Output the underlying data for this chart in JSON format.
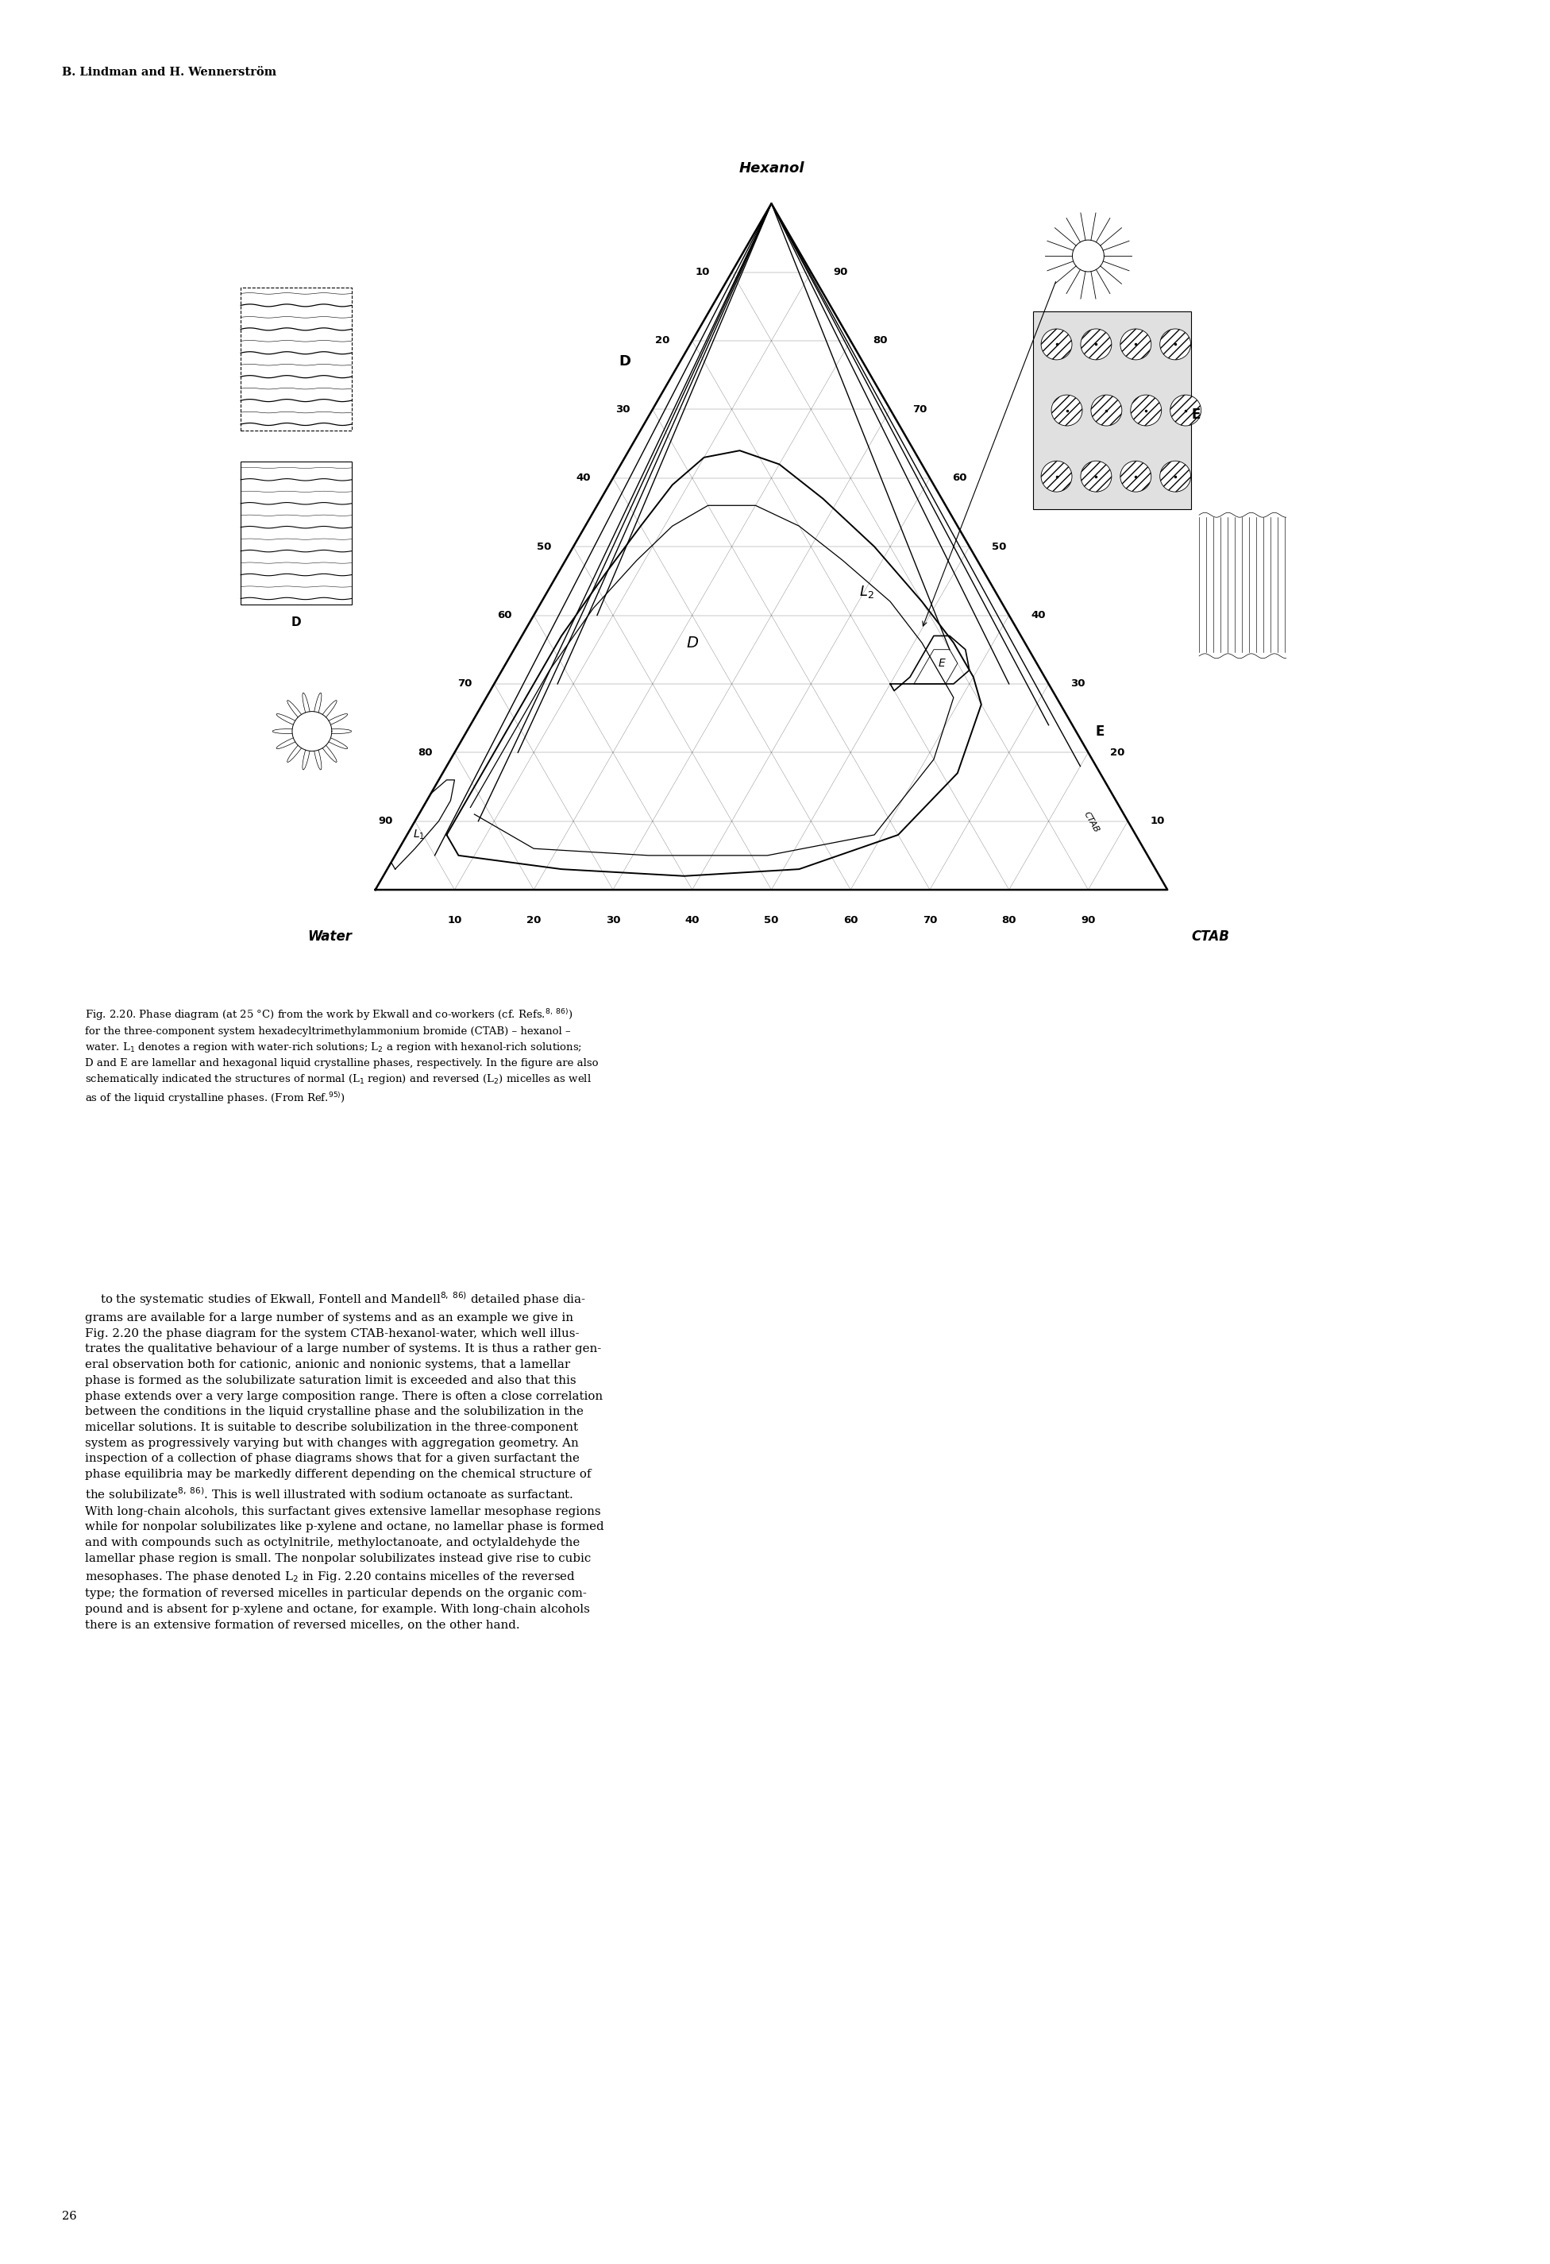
{
  "title_header": "B. Lindman and H. Wennerström",
  "hexanol_label": "Hexanol",
  "water_label": "Water",
  "ctab_label": "CTAB",
  "D_label": "D",
  "E_label": "E",
  "L1_label": "L₁",
  "L2_label": "L₂",
  "background_color": "#ffffff",
  "caption": "Fig. 2.20. Phase diagram (at 25 °C) from the work by Ekwall and co-workers (cf. Refs.",
  "caption_refs": "8, 86)",
  "caption_rest": " for the three-component system hexadecyltrimethylammonium bromide (CTAB) – hexanol –\nwater. L₁ denotes a region with water-rich solutions; L₂ a region with hexanol-rich solutions;\nD and E are lamellar and hexagonal liquid crystalline phases, respectively. In the figure are also\nschematically indicated the structures of normal (L₁ region) and reversed (L₂) micelles as well\nas of the liquid crystalline phases. (From Ref.",
  "caption_ref2": "95)",
  "body_text": "    to the systematic studies of Ekwall, Fontell and Mandell detailed phase dia-\ngrams are available for a large number of systems and as an example we give in\nFig. 2.20 the phase diagram for the system CTAB-hexanol-water, which well illus-\ntrates the qualitative behaviour of a large number of systems. It is thus a rather gen-\neral observation both for cationic, anionic and nonionic systems, that a lamellar\nphase is formed as the solubilizate saturation limit is exceeded and also that this\nphase extends over a very large composition range. There is often a close correlation\nbetween the conditions in the liquid crystalline phase and the solubilization in the\nmicellar solutions. It is suitable to describe solubilization in the three-component\nsystem as progressively varying but with changes with aggregation geometry. An\ninspection of a collection of phase diagrams shows that for a given surfactant the\nphase equilibria may be markedly different depending on the chemical structure of\nthe solubilizate. This is well illustrated with sodium octanoate as surfactant.\nWith long-chain alcohols, this surfactant gives extensive lamellar mesophase regions\nwhile for nonpolar solubilizates like p-xylene and octane, no lamellar phase is formed\nand with compounds such as octylnitrile, methyloctanoate, and octylaldehyde the\nlamellar phase region is small. The nonpolar solubilizates instead give rise to cubic\nmesophases. The phase denoted L₂ in Fig. 2.20 contains micelles of the reversed\ntype; the formation of reversed micelles in particular depends on the organic com-\npound and is absent for p-xylene and octane, for example. With long-chain alcohols\nthere is an extensive formation of reversed micelles, on the other hand."
}
